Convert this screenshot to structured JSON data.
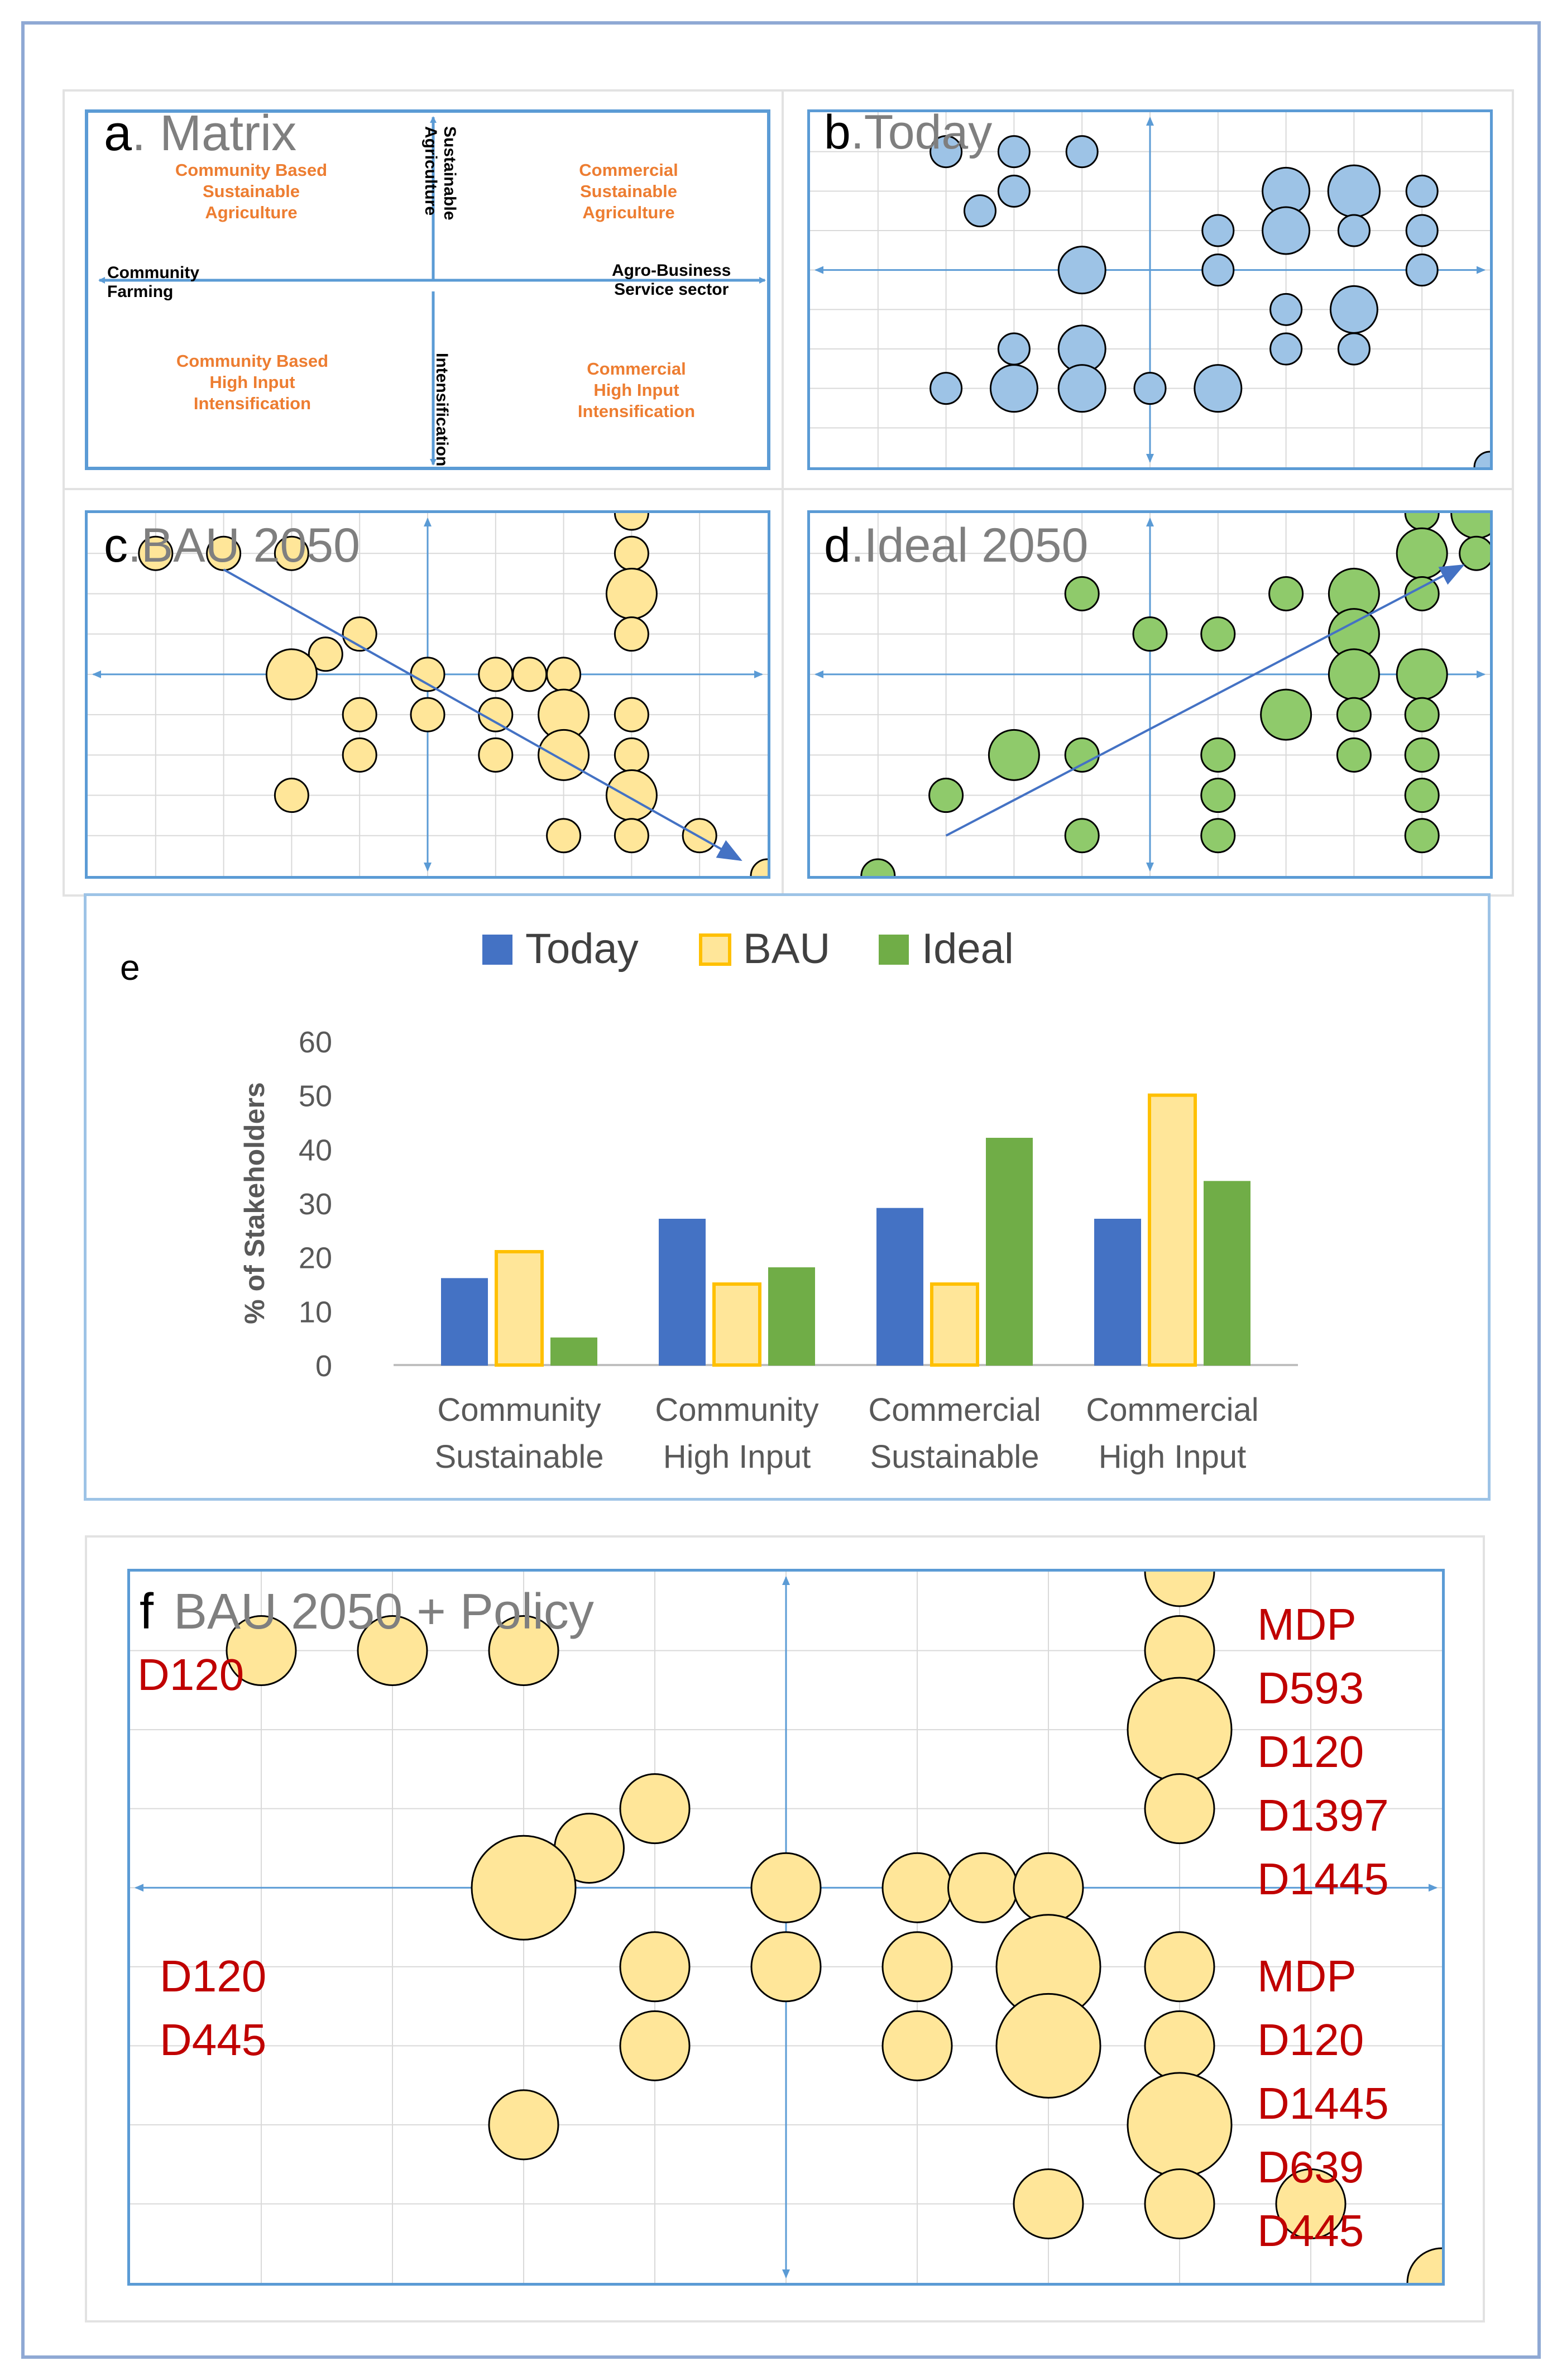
{
  "colors": {
    "today": "#4472c4",
    "today_bubble": "#9dc3e6",
    "bau": "#ffc000",
    "bau_bubble": "#ffe699",
    "ideal": "#70ad47",
    "ideal_bubble": "#8fca6b",
    "axis_blue": "#5b9bd5",
    "label_orange": "#ed7d31",
    "label_red": "#c00000"
  },
  "panel_a": {
    "letter": "a",
    "title": ". Matrix",
    "q_top_left": [
      "Community Based",
      "Sustainable",
      "Agriculture"
    ],
    "q_top_right": [
      "Commercial",
      "Sustainable",
      "Agriculture"
    ],
    "q_bottom_left": [
      "Community Based",
      "High Input",
      "Intensification"
    ],
    "q_bottom_right": [
      "Commercial",
      "High Input",
      "Intensification"
    ],
    "axis_left": [
      "Community",
      "Farming"
    ],
    "axis_right": [
      "Agro-Business",
      "Service sector"
    ],
    "axis_top": [
      "Sustainable",
      "Agriculture"
    ],
    "axis_bottom": "Intensification"
  },
  "panel_b": {
    "letter": "b",
    "title": ".Today"
  },
  "panel_c": {
    "letter": "c",
    "title": ".BAU 2050"
  },
  "panel_d": {
    "letter": "d",
    "title": ".Ideal 2050"
  },
  "panel_f": {
    "letter": "f",
    "title": "BAU 2050 + Policy",
    "label_top_left": "D120",
    "labels_left": [
      "D120",
      "D445"
    ],
    "labels_right_top": [
      "MDP",
      "D593",
      "D120",
      "D1397",
      "D1445"
    ],
    "labels_right_bottom": [
      "MDP",
      "D120",
      "D1445",
      "D639",
      "D445"
    ]
  },
  "chart_data": [
    {
      "type": "bar",
      "panel": "e",
      "title": "e",
      "ylabel": "% of Stakeholders",
      "xlabel": "",
      "ylim": [
        0,
        60
      ],
      "yticks": [
        "0",
        "10",
        "20",
        "30",
        "40",
        "50",
        "60"
      ],
      "categories": [
        [
          "Community",
          "Sustainable"
        ],
        [
          "Community",
          "High Input"
        ],
        [
          "Commercial",
          "Sustainable"
        ],
        [
          "Commercial",
          "High Input"
        ]
      ],
      "series": [
        {
          "name": "Today",
          "values": [
            16,
            27,
            29,
            27
          ]
        },
        {
          "name": "BAU",
          "values": [
            21,
            15,
            15,
            50
          ]
        },
        {
          "name": "Ideal",
          "values": [
            5,
            18,
            42,
            34
          ]
        }
      ],
      "legend": "top"
    },
    {
      "type": "scatter",
      "panel": "b",
      "name": "Today",
      "xlim": [
        -5,
        5
      ],
      "ylim": [
        -5,
        4
      ],
      "points": [
        {
          "x": -3,
          "y": 3,
          "s": 1
        },
        {
          "x": -2,
          "y": 3,
          "s": 1
        },
        {
          "x": -1,
          "y": 3,
          "s": 1
        },
        {
          "x": -2.5,
          "y": 1.5,
          "s": 1
        },
        {
          "x": -2,
          "y": 2,
          "s": 1
        },
        {
          "x": 2,
          "y": 2,
          "s": 2
        },
        {
          "x": 3,
          "y": 2,
          "s": 3
        },
        {
          "x": 4,
          "y": 2,
          "s": 1
        },
        {
          "x": 1,
          "y": 1,
          "s": 1
        },
        {
          "x": 2,
          "y": 1,
          "s": 2
        },
        {
          "x": 3,
          "y": 1,
          "s": 1
        },
        {
          "x": 4,
          "y": 1,
          "s": 1
        },
        {
          "x": -1,
          "y": 0,
          "s": 2
        },
        {
          "x": 1,
          "y": 0,
          "s": 1
        },
        {
          "x": 4,
          "y": 0,
          "s": 1
        },
        {
          "x": 2,
          "y": -1,
          "s": 1
        },
        {
          "x": 3,
          "y": -1,
          "s": 2
        },
        {
          "x": -2,
          "y": -2,
          "s": 1
        },
        {
          "x": -1,
          "y": -2,
          "s": 2
        },
        {
          "x": 2,
          "y": -2,
          "s": 1
        },
        {
          "x": 3,
          "y": -2,
          "s": 1
        },
        {
          "x": -3,
          "y": -3,
          "s": 1
        },
        {
          "x": -2,
          "y": -3,
          "s": 2
        },
        {
          "x": -1,
          "y": -3,
          "s": 2
        },
        {
          "x": 0,
          "y": -3,
          "s": 1
        },
        {
          "x": 1,
          "y": -3,
          "s": 2
        },
        {
          "x": 5,
          "y": -5,
          "s": 1
        }
      ]
    },
    {
      "type": "scatter",
      "panel": "c",
      "name": "BAU 2050",
      "xlim": [
        -5,
        5
      ],
      "ylim": [
        -5,
        4
      ],
      "trend": {
        "from": [
          -3,
          2.6
        ],
        "to": [
          4.6,
          -4.6
        ]
      },
      "points": [
        {
          "x": -4,
          "y": 3,
          "s": 1
        },
        {
          "x": -3,
          "y": 3,
          "s": 1
        },
        {
          "x": -2,
          "y": 3,
          "s": 1
        },
        {
          "x": 3,
          "y": 4,
          "s": 1
        },
        {
          "x": 3,
          "y": 3,
          "s": 1
        },
        {
          "x": 3,
          "y": 2,
          "s": 2
        },
        {
          "x": 3,
          "y": 1,
          "s": 1
        },
        {
          "x": -1,
          "y": 1,
          "s": 1
        },
        {
          "x": -1.5,
          "y": 0.5,
          "s": 1
        },
        {
          "x": -2,
          "y": 0,
          "s": 2
        },
        {
          "x": 0,
          "y": 0,
          "s": 1
        },
        {
          "x": 1,
          "y": 0,
          "s": 1
        },
        {
          "x": 1.5,
          "y": 0,
          "s": 1
        },
        {
          "x": 2,
          "y": 0,
          "s": 1
        },
        {
          "x": -1,
          "y": -1,
          "s": 1
        },
        {
          "x": 0,
          "y": -1,
          "s": 1
        },
        {
          "x": 1,
          "y": -1,
          "s": 1
        },
        {
          "x": 2,
          "y": -1,
          "s": 2
        },
        {
          "x": 3,
          "y": -1,
          "s": 1
        },
        {
          "x": -1,
          "y": -2,
          "s": 1
        },
        {
          "x": 1,
          "y": -2,
          "s": 1
        },
        {
          "x": 2,
          "y": -2,
          "s": 2
        },
        {
          "x": 3,
          "y": -2,
          "s": 1
        },
        {
          "x": -2,
          "y": -3,
          "s": 1
        },
        {
          "x": 3,
          "y": -3,
          "s": 2
        },
        {
          "x": 2,
          "y": -4,
          "s": 1
        },
        {
          "x": 3,
          "y": -4,
          "s": 1
        },
        {
          "x": 4,
          "y": -4,
          "s": 1
        },
        {
          "x": 5,
          "y": -5,
          "s": 1
        }
      ]
    },
    {
      "type": "scatter",
      "panel": "d",
      "name": "Ideal 2050",
      "xlim": [
        -5,
        5
      ],
      "ylim": [
        -5,
        4
      ],
      "trend": {
        "from": [
          -3,
          -4
        ],
        "to": [
          4.6,
          2.7
        ]
      },
      "points": [
        {
          "x": 4,
          "y": 4,
          "s": 1
        },
        {
          "x": 4.8,
          "y": 4,
          "s": 2
        },
        {
          "x": 4,
          "y": 3,
          "s": 2
        },
        {
          "x": 4.8,
          "y": 3,
          "s": 1
        },
        {
          "x": -1,
          "y": 2,
          "s": 1
        },
        {
          "x": 2,
          "y": 2,
          "s": 1
        },
        {
          "x": 3,
          "y": 2,
          "s": 2
        },
        {
          "x": 4,
          "y": 2,
          "s": 1
        },
        {
          "x": 0,
          "y": 1,
          "s": 1
        },
        {
          "x": 1,
          "y": 1,
          "s": 1
        },
        {
          "x": 3,
          "y": 1,
          "s": 2
        },
        {
          "x": 3,
          "y": 0,
          "s": 2
        },
        {
          "x": 4,
          "y": 0,
          "s": 2
        },
        {
          "x": 2,
          "y": -1,
          "s": 2
        },
        {
          "x": 3,
          "y": -1,
          "s": 1
        },
        {
          "x": 4,
          "y": -1,
          "s": 1
        },
        {
          "x": -2,
          "y": -2,
          "s": 2
        },
        {
          "x": -1,
          "y": -2,
          "s": 1
        },
        {
          "x": 1,
          "y": -2,
          "s": 1
        },
        {
          "x": 3,
          "y": -2,
          "s": 1
        },
        {
          "x": 4,
          "y": -2,
          "s": 1
        },
        {
          "x": -3,
          "y": -3,
          "s": 1
        },
        {
          "x": 1,
          "y": -3,
          "s": 1
        },
        {
          "x": 4,
          "y": -3,
          "s": 1
        },
        {
          "x": -1,
          "y": -4,
          "s": 1
        },
        {
          "x": 1,
          "y": -4,
          "s": 1
        },
        {
          "x": 4,
          "y": -4,
          "s": 1
        },
        {
          "x": -4,
          "y": -5,
          "s": 1
        }
      ]
    },
    {
      "type": "scatter",
      "panel": "f",
      "name": "BAU 2050 + Policy",
      "xlim": [
        -5,
        5
      ],
      "ylim": [
        -5,
        4
      ],
      "points": [
        {
          "x": -4,
          "y": 3,
          "s": 1
        },
        {
          "x": -3,
          "y": 3,
          "s": 1
        },
        {
          "x": -2,
          "y": 3,
          "s": 1
        },
        {
          "x": 3,
          "y": 4,
          "s": 1
        },
        {
          "x": 3,
          "y": 3,
          "s": 1
        },
        {
          "x": 3,
          "y": 2,
          "s": 2
        },
        {
          "x": 3,
          "y": 1,
          "s": 1
        },
        {
          "x": -1,
          "y": 1,
          "s": 1
        },
        {
          "x": -1.5,
          "y": 0.5,
          "s": 1
        },
        {
          "x": -2,
          "y": 0,
          "s": 2
        },
        {
          "x": 0,
          "y": 0,
          "s": 1
        },
        {
          "x": 1,
          "y": 0,
          "s": 1
        },
        {
          "x": 1.5,
          "y": 0,
          "s": 1
        },
        {
          "x": 2,
          "y": 0,
          "s": 1
        },
        {
          "x": -1,
          "y": -1,
          "s": 1
        },
        {
          "x": 0,
          "y": -1,
          "s": 1
        },
        {
          "x": 1,
          "y": -1,
          "s": 1
        },
        {
          "x": 2,
          "y": -1,
          "s": 2
        },
        {
          "x": 3,
          "y": -1,
          "s": 1
        },
        {
          "x": -1,
          "y": -2,
          "s": 1
        },
        {
          "x": 1,
          "y": -2,
          "s": 1
        },
        {
          "x": 2,
          "y": -2,
          "s": 2
        },
        {
          "x": 3,
          "y": -2,
          "s": 1
        },
        {
          "x": -2,
          "y": -3,
          "s": 1
        },
        {
          "x": 3,
          "y": -3,
          "s": 2
        },
        {
          "x": 2,
          "y": -4,
          "s": 1
        },
        {
          "x": 3,
          "y": -4,
          "s": 1
        },
        {
          "x": 4,
          "y": -4,
          "s": 1
        },
        {
          "x": 5,
          "y": -5,
          "s": 1
        }
      ]
    }
  ]
}
